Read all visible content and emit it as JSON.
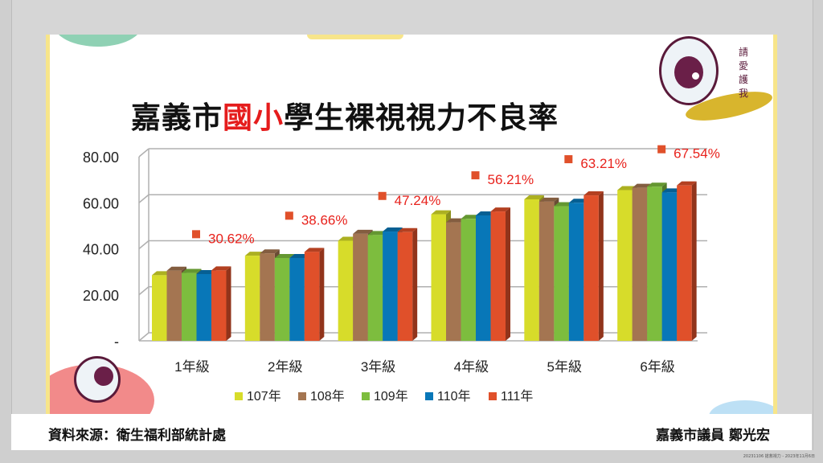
{
  "title": {
    "pre": "嘉義市",
    "highlight": "國小",
    "post": "學生裸視視力不良率"
  },
  "mascot_text": "請愛護我",
  "source": "資料來源：衛生福利部統計處",
  "author": "嘉義市議員 鄭光宏",
  "tiny_footer": "20231106 搶救視力 - 2023年11月6日",
  "colors": {
    "107年": "#d7dc2a",
    "108年": "#a47551",
    "109年": "#7dbd3e",
    "110年": "#0877b8",
    "111年": "#e0502a"
  },
  "chart_data": {
    "type": "bar",
    "title": "嘉義市國小學生裸視視力不良率",
    "categories": [
      "1年級",
      "2年級",
      "3年級",
      "4年級",
      "5年級",
      "6年級"
    ],
    "series": [
      {
        "name": "107年",
        "values": [
          28.5,
          37,
          43.5,
          55,
          61.5,
          65.5
        ]
      },
      {
        "name": "108年",
        "values": [
          30.5,
          38,
          46.5,
          51.5,
          60.5,
          66.5
        ]
      },
      {
        "name": "109年",
        "values": [
          29.5,
          36,
          46,
          53,
          58.5,
          67
        ]
      },
      {
        "name": "110年",
        "values": [
          29,
          36,
          47.5,
          54.5,
          60,
          64.5
        ]
      },
      {
        "name": "111年",
        "values": [
          30.62,
          38.66,
          47.24,
          56.21,
          63.21,
          67.54
        ]
      }
    ],
    "annotations": [
      "30.62%",
      "38.66%",
      "47.24%",
      "56.21%",
      "63.21%",
      "67.54%"
    ],
    "yticks": [
      "-",
      "20.00",
      "40.00",
      "60.00",
      "80.00"
    ],
    "ylim": [
      0,
      80
    ],
    "grid": true,
    "legend": "bottom"
  }
}
